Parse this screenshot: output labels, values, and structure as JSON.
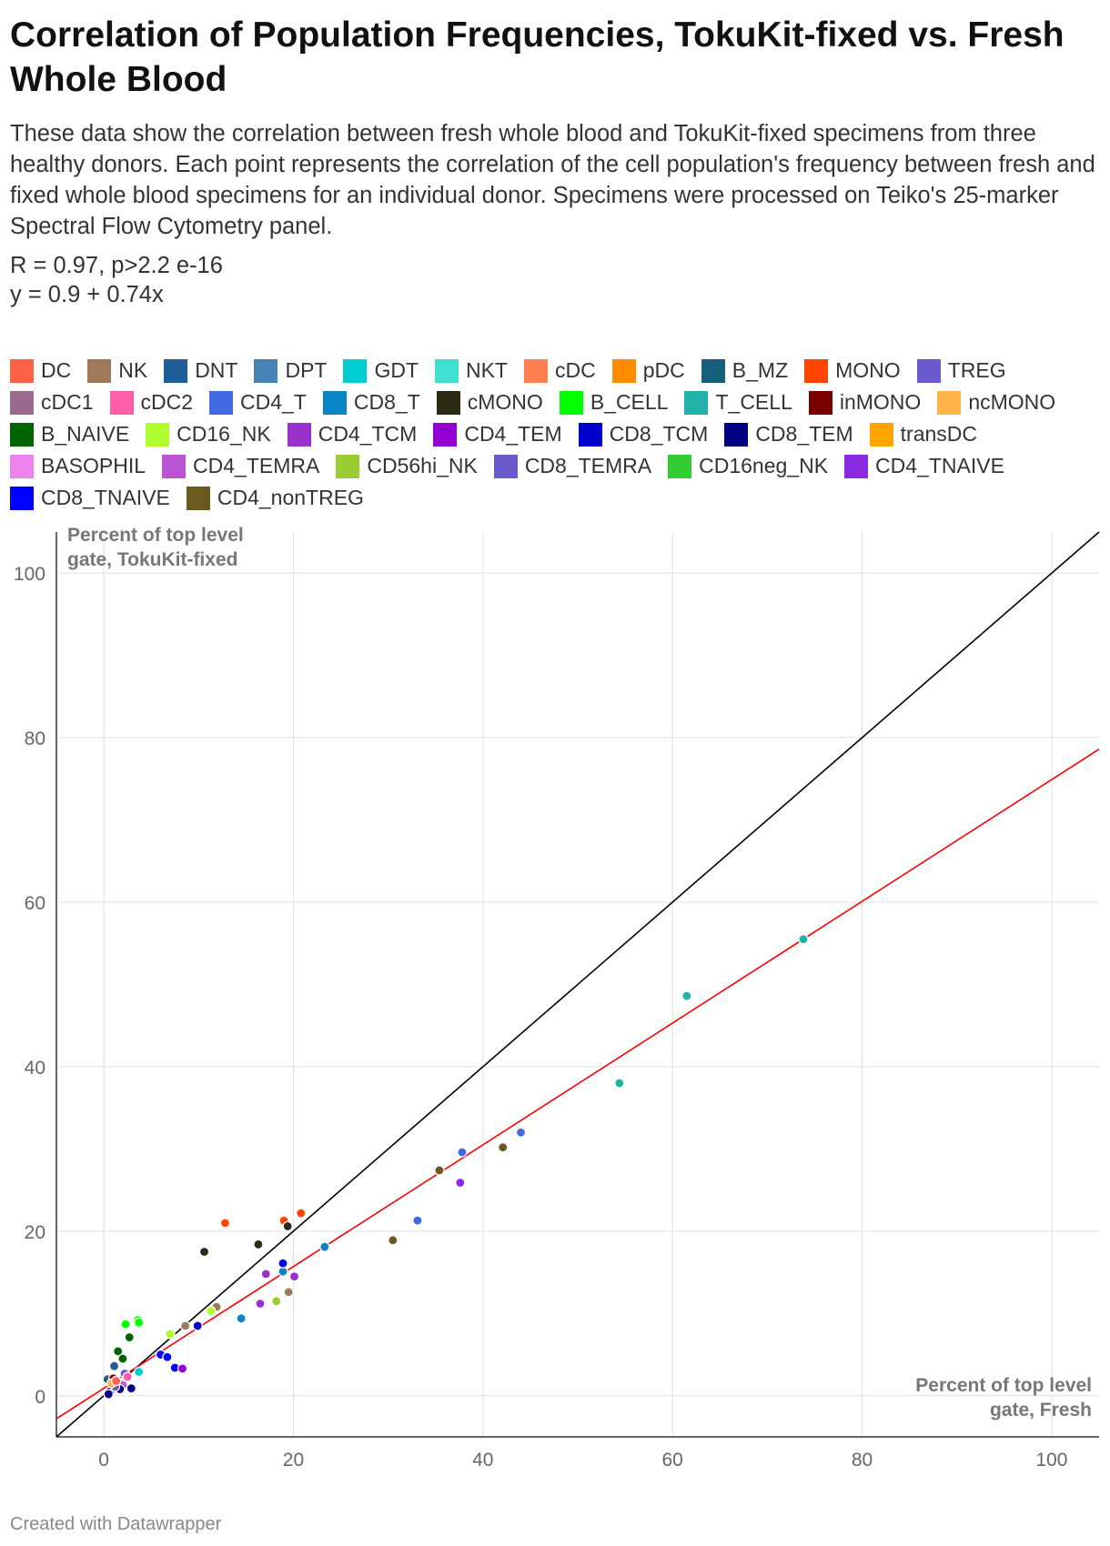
{
  "title": "Correlation of Population Frequencies, TokuKit-fixed vs. Fresh Whole Blood",
  "description": "These data show the correlation between fresh whole blood and TokuKit-fixed specimens from three healthy donors. Each point represents the correlation of the cell population's frequency between fresh and fixed whole blood specimens for an individual donor. Specimens were processed on Teiko's 25-marker Spectral Flow Cytometry panel.",
  "stat_r": "R = 0.97, p>2.2 e-16",
  "stat_eq": "y = 0.9 + 0.74x",
  "footer": "Created with Datawrapper",
  "legend": [
    {
      "label": "DC",
      "color": "#ff6347"
    },
    {
      "label": "NK",
      "color": "#a0785a"
    },
    {
      "label": "DNT",
      "color": "#1f5f99"
    },
    {
      "label": "DPT",
      "color": "#4682b4"
    },
    {
      "label": "GDT",
      "color": "#00ced1"
    },
    {
      "label": "NKT",
      "color": "#40e0d0"
    },
    {
      "label": "cDC",
      "color": "#ff7f50"
    },
    {
      "label": "pDC",
      "color": "#ff8c00"
    },
    {
      "label": "B_MZ",
      "color": "#17607a"
    },
    {
      "label": "MONO",
      "color": "#ff4500"
    },
    {
      "label": "TREG",
      "color": "#6a5acd"
    },
    {
      "label": "cDC1",
      "color": "#9b6b8f"
    },
    {
      "label": "cDC2",
      "color": "#ff5fa8"
    },
    {
      "label": "CD4_T",
      "color": "#4169e1"
    },
    {
      "label": "CD8_T",
      "color": "#0b84c6"
    },
    {
      "label": "cMONO",
      "color": "#2b2b14"
    },
    {
      "label": "B_CELL",
      "color": "#00ff00"
    },
    {
      "label": "T_CELL",
      "color": "#20b2aa"
    },
    {
      "label": "inMONO",
      "color": "#7a0000"
    },
    {
      "label": "ncMONO",
      "color": "#ffb347"
    },
    {
      "label": "B_NAIVE",
      "color": "#006400"
    },
    {
      "label": "CD16_NK",
      "color": "#adff2f"
    },
    {
      "label": "CD4_TCM",
      "color": "#9932cc"
    },
    {
      "label": "CD4_TEM",
      "color": "#9400d3"
    },
    {
      "label": "CD8_TCM",
      "color": "#0000cd"
    },
    {
      "label": "CD8_TEM",
      "color": "#000080"
    },
    {
      "label": "transDC",
      "color": "#ffa500"
    },
    {
      "label": "BASOPHIL",
      "color": "#ee82ee"
    },
    {
      "label": "CD4_TEMRA",
      "color": "#ba55d3"
    },
    {
      "label": "CD56hi_NK",
      "color": "#9acd32"
    },
    {
      "label": "CD8_TEMRA",
      "color": "#6a5acd"
    },
    {
      "label": "CD16neg_NK",
      "color": "#32cd32"
    },
    {
      "label": "CD4_TNAIVE",
      "color": "#8a2be2"
    },
    {
      "label": "CD8_TNAIVE",
      "color": "#0000ff"
    },
    {
      "label": "CD4_nonTREG",
      "color": "#6b5a1e"
    }
  ],
  "chart_data": {
    "type": "scatter",
    "xlabel": "Percent of top level gate, Fresh",
    "ylabel": "Percent of top level gate, TokuKit-fixed",
    "xlim": [
      -5,
      105
    ],
    "ylim": [
      -5,
      105
    ],
    "xticks": [
      0,
      20,
      40,
      60,
      80,
      100
    ],
    "yticks": [
      0,
      20,
      40,
      60,
      80,
      100
    ],
    "grid": true,
    "identity_line": {
      "intercept": 0,
      "slope": 1,
      "color": "#000000"
    },
    "fit_line": {
      "intercept": 0.9,
      "slope": 0.74,
      "color": "#ff0000"
    },
    "points": [
      {
        "pop": "T_CELL",
        "x": 73.8,
        "y": 55.5
      },
      {
        "pop": "T_CELL",
        "x": 61.5,
        "y": 48.6
      },
      {
        "pop": "T_CELL",
        "x": 54.4,
        "y": 38.0
      },
      {
        "pop": "CD4_T",
        "x": 44.0,
        "y": 32.0
      },
      {
        "pop": "CD4_T",
        "x": 37.8,
        "y": 29.6
      },
      {
        "pop": "CD4_T",
        "x": 33.1,
        "y": 21.3
      },
      {
        "pop": "CD4_nonTREG",
        "x": 42.1,
        "y": 30.2
      },
      {
        "pop": "CD4_nonTREG",
        "x": 35.4,
        "y": 27.4
      },
      {
        "pop": "CD4_nonTREG",
        "x": 30.5,
        "y": 18.9
      },
      {
        "pop": "CD4_TNAIVE",
        "x": 37.6,
        "y": 25.9
      },
      {
        "pop": "CD8_T",
        "x": 23.3,
        "y": 18.1
      },
      {
        "pop": "CD8_T",
        "x": 18.9,
        "y": 15.1
      },
      {
        "pop": "CD8_T",
        "x": 14.5,
        "y": 9.4
      },
      {
        "pop": "MONO",
        "x": 20.8,
        "y": 22.2
      },
      {
        "pop": "MONO",
        "x": 19.0,
        "y": 21.3
      },
      {
        "pop": "MONO",
        "x": 12.8,
        "y": 21.0
      },
      {
        "pop": "cMONO",
        "x": 19.4,
        "y": 20.6
      },
      {
        "pop": "cMONO",
        "x": 16.3,
        "y": 18.4
      },
      {
        "pop": "cMONO",
        "x": 10.6,
        "y": 17.5
      },
      {
        "pop": "CD8_TNAIVE",
        "x": 18.9,
        "y": 16.1
      },
      {
        "pop": "CD4_TCM",
        "x": 20.1,
        "y": 14.5
      },
      {
        "pop": "CD4_TCM",
        "x": 17.1,
        "y": 14.8
      },
      {
        "pop": "CD4_TCM",
        "x": 16.5,
        "y": 11.2
      },
      {
        "pop": "NK",
        "x": 19.5,
        "y": 12.6
      },
      {
        "pop": "NK",
        "x": 11.9,
        "y": 10.8
      },
      {
        "pop": "NK",
        "x": 8.6,
        "y": 8.5
      },
      {
        "pop": "CD56hi_NK",
        "x": 18.2,
        "y": 11.5
      },
      {
        "pop": "CD16_NK",
        "x": 11.3,
        "y": 10.3
      },
      {
        "pop": "CD16_NK",
        "x": 7.0,
        "y": 7.5
      },
      {
        "pop": "CD8_TCM",
        "x": 9.9,
        "y": 8.5
      },
      {
        "pop": "B_CELL",
        "x": 3.6,
        "y": 9.2
      },
      {
        "pop": "B_CELL",
        "x": 2.3,
        "y": 8.7
      },
      {
        "pop": "B_CELL",
        "x": 3.7,
        "y": 8.9
      },
      {
        "pop": "B_NAIVE",
        "x": 2.7,
        "y": 7.1
      },
      {
        "pop": "B_NAIVE",
        "x": 1.5,
        "y": 5.4
      },
      {
        "pop": "B_NAIVE",
        "x": 2.0,
        "y": 4.5
      },
      {
        "pop": "CD8_TNAIVE",
        "x": 6.0,
        "y": 5.0
      },
      {
        "pop": "CD8_TNAIVE",
        "x": 6.7,
        "y": 4.7
      },
      {
        "pop": "CD8_TNAIVE",
        "x": 7.5,
        "y": 3.4
      },
      {
        "pop": "CD4_TEM",
        "x": 8.3,
        "y": 3.3
      },
      {
        "pop": "GDT",
        "x": 3.7,
        "y": 2.9
      },
      {
        "pop": "DNT",
        "x": 1.1,
        "y": 3.6
      },
      {
        "pop": "TREG",
        "x": 2.2,
        "y": 2.7
      },
      {
        "pop": "cDC2",
        "x": 2.5,
        "y": 2.3
      },
      {
        "pop": "B_MZ",
        "x": 0.4,
        "y": 2.0
      },
      {
        "pop": "inMONO",
        "x": 1.0,
        "y": 2.1
      },
      {
        "pop": "cDC1",
        "x": 1.6,
        "y": 1.6
      },
      {
        "pop": "CD4_TEMRA",
        "x": 2.0,
        "y": 1.3
      },
      {
        "pop": "CD8_TEM",
        "x": 2.9,
        "y": 0.9
      },
      {
        "pop": "CD8_TEM",
        "x": 1.7,
        "y": 0.8
      },
      {
        "pop": "CD8_TCM",
        "x": 0.7,
        "y": 0.6
      },
      {
        "pop": "CD8_TEMRA",
        "x": 1.2,
        "y": 1.1
      },
      {
        "pop": "CD8_TEM",
        "x": 0.5,
        "y": 0.2
      },
      {
        "pop": "ncMONO",
        "x": 0.8,
        "y": 1.5
      },
      {
        "pop": "DC",
        "x": 1.3,
        "y": 1.8
      }
    ]
  }
}
